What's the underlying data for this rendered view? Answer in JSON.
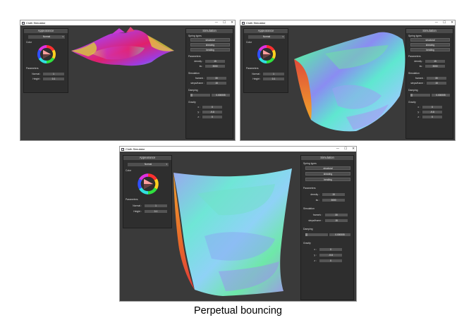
{
  "window": {
    "title": "Cloth Simulator",
    "controls": [
      "—",
      "☐",
      "✕"
    ]
  },
  "appearance": {
    "header": "Appearance",
    "render_mode": "Normal",
    "color_label": "Color",
    "parameters_label": "Parameters",
    "normal_label": "Normal :",
    "normal_value": "1",
    "height_label": "Height :",
    "height_value": "0.1"
  },
  "simulation": {
    "header": "Simulation",
    "spring_types_label": "Spring types",
    "structural": "structural",
    "shearing": "shearing",
    "bending": "bending",
    "parameters_label": "Parameters",
    "density_label": "density :",
    "density_value": "15",
    "ks_label": "ks :",
    "ks_value": "3000",
    "simulation_label": "Simulation",
    "frames_label": "frame/s :",
    "frames_value": "30",
    "steps_label": "steps/frame :",
    "steps_value": "15",
    "damping_label": "Damping",
    "damping_value": "0.000005",
    "gravity_label": "Gravity",
    "x_label": "x :",
    "x_value": "0",
    "y_label": "y :",
    "y_value": "-9.8",
    "z_label": "z :",
    "z_value": "0"
  },
  "caption": "Perpetual bouncing",
  "colors": {
    "window_bg": "#3a3a3a",
    "panel_bg": "#2e2e2e",
    "header_bg": "#4b4b4b",
    "field_bg": "#555555"
  },
  "icons": [
    "app-icon",
    "minimize-icon",
    "maximize-icon",
    "close-icon",
    "color-wheel-icon",
    "dropdown-caret-icon"
  ]
}
